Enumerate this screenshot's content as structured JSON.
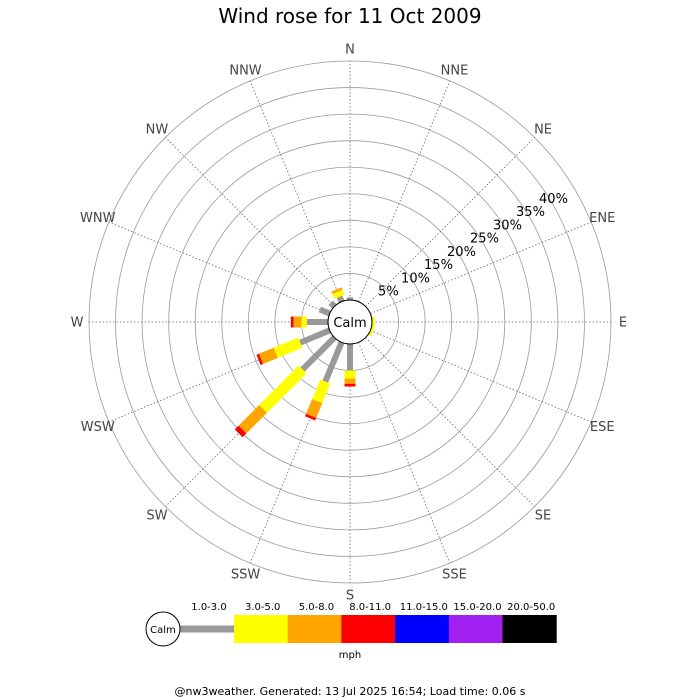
{
  "chart_data": {
    "type": "wind-rose",
    "title": "Wind rose for 11 Oct 2009",
    "center_label": "Calm",
    "units": "mph",
    "directions": [
      "N",
      "NNE",
      "NE",
      "ENE",
      "E",
      "ESE",
      "SE",
      "SSE",
      "S",
      "SSW",
      "SW",
      "WSW",
      "W",
      "WNW",
      "NW",
      "NNW"
    ],
    "rings_pct": [
      5,
      10,
      15,
      20,
      25,
      30,
      35,
      40
    ],
    "ring_labels": [
      "5%",
      "10%",
      "15%",
      "20%",
      "25%",
      "30%",
      "35%",
      "40%"
    ],
    "calm_pct": 2.5,
    "max_pct": 45,
    "speed_bins": [
      {
        "label": "1.0-3.0",
        "color": "#999999"
      },
      {
        "label": "3.0-5.0",
        "color": "#ffff00"
      },
      {
        "label": "5.0-8.0",
        "color": "#ffa500"
      },
      {
        "label": "8.0-11.0",
        "color": "#ff0000"
      },
      {
        "label": "11.0-15.0",
        "color": "#0000ff"
      },
      {
        "label": "15.0-20.0",
        "color": "#a020f0"
      },
      {
        "label": "20.0-50.0",
        "color": "#000000"
      }
    ],
    "series": [
      {
        "name": "1.0-3.0",
        "values": [
          0.5,
          0,
          0,
          0,
          0,
          0,
          0,
          0,
          5.0,
          8.0,
          8.5,
          6.0,
          4.0,
          2.0,
          1.0,
          1.0
        ]
      },
      {
        "name": "3.0-5.0",
        "values": [
          0,
          0,
          0,
          0,
          0.5,
          0.5,
          0,
          0,
          1.5,
          4.0,
          10.5,
          5.0,
          1.0,
          0,
          0,
          1.0
        ]
      },
      {
        "name": "5.0-8.0",
        "values": [
          0,
          0,
          0,
          0,
          0,
          0,
          0,
          0,
          1.0,
          3.0,
          5.5,
          3.0,
          1.5,
          0,
          0,
          0.5
        ]
      },
      {
        "name": "8.0-11.0",
        "values": [
          0,
          0,
          0,
          0,
          0,
          0,
          0,
          0,
          0.5,
          0.5,
          1.0,
          0.5,
          0.5,
          0,
          0,
          0
        ]
      },
      {
        "name": "11.0-15.0",
        "values": [
          0,
          0,
          0,
          0,
          0,
          0,
          0,
          0,
          0,
          0,
          0,
          0,
          0,
          0,
          0,
          0
        ]
      },
      {
        "name": "15.0-20.0",
        "values": [
          0,
          0,
          0,
          0,
          0,
          0,
          0,
          0,
          0,
          0,
          0,
          0,
          0,
          0,
          0,
          0
        ]
      },
      {
        "name": "20.0-50.0",
        "values": [
          0,
          0,
          0,
          0,
          0,
          0,
          0,
          0,
          0,
          0,
          0,
          0,
          0,
          0,
          0,
          0
        ]
      }
    ],
    "grid": true
  },
  "footer": "@nw3weather. Generated: 13 Jul 2025 16:54; Load time: 0.06 s"
}
